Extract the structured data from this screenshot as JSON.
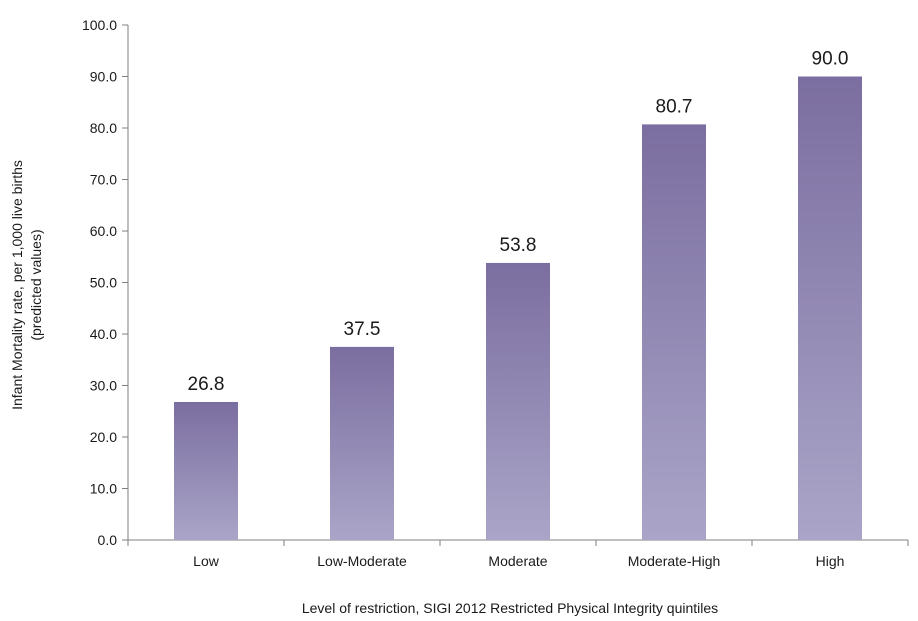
{
  "chart_data": {
    "type": "bar",
    "title": "",
    "xlabel": "Level of restriction, SIGI 2012 Restricted Physical Integrity quintiles",
    "ylabel": [
      "Infant Mortality rate,  per 1,000 live births",
      "(predicted values)"
    ],
    "categories": [
      "Low",
      "Low-Moderate",
      "Moderate",
      "Moderate-High",
      "High"
    ],
    "values": [
      26.8,
      37.5,
      53.8,
      80.7,
      90.0
    ],
    "data_labels": [
      "26.8",
      "37.5",
      "53.8",
      "80.7",
      "90.0"
    ],
    "ylim": [
      0,
      100
    ],
    "yticks": [
      0,
      10,
      20,
      30,
      40,
      50,
      60,
      70,
      80,
      90,
      100
    ],
    "ytick_labels": [
      "0.0",
      "10.0",
      "20.0",
      "30.0",
      "40.0",
      "50.0",
      "60.0",
      "70.0",
      "80.0",
      "90.0",
      "100.0"
    ],
    "grid": false,
    "legend": "none",
    "colors": {
      "bar_top": "#7b6ea0",
      "bar_bottom": "#aaa5c8",
      "axis": "#7f7f7f"
    }
  }
}
